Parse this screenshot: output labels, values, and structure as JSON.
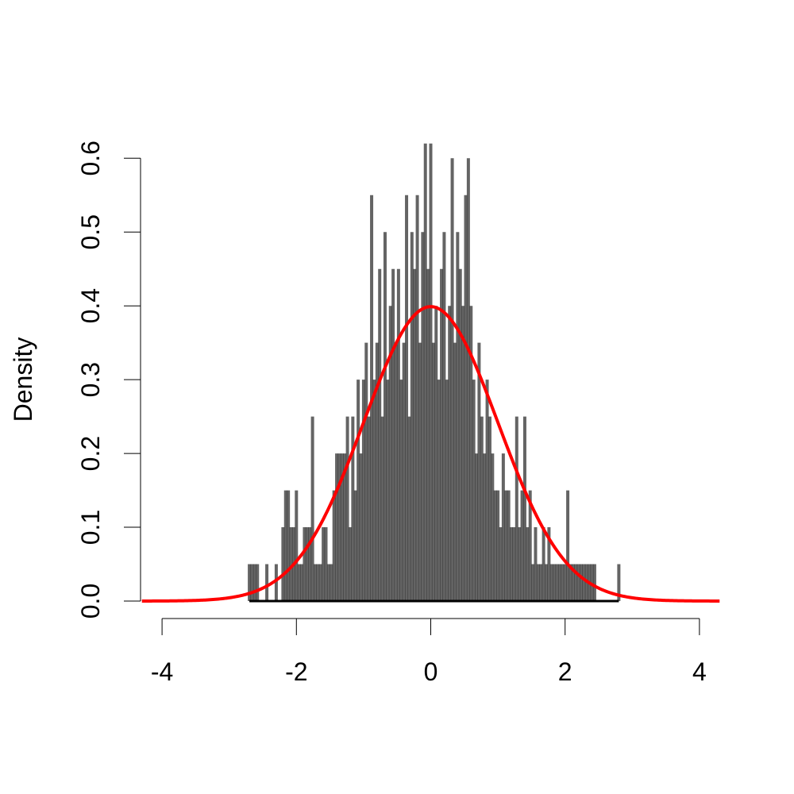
{
  "chart_data": {
    "type": "bar",
    "subtype": "histogram-with-density-curve",
    "title": "",
    "xlabel": "",
    "ylabel": "Density",
    "xlim": [
      -4.3,
      4.3
    ],
    "ylim": [
      0,
      0.62
    ],
    "x_ticks": [
      -4,
      -2,
      0,
      2,
      4
    ],
    "x_tick_labels": [
      "-4",
      "-2",
      "0",
      "2",
      "4"
    ],
    "y_ticks": [
      0.0,
      0.1,
      0.2,
      0.3,
      0.4,
      0.5,
      0.6
    ],
    "y_tick_labels": [
      "0.0",
      "0.1",
      "0.2",
      "0.3",
      "0.4",
      "0.5",
      "0.6"
    ],
    "grid": false,
    "legend": "none",
    "bin_width": 0.02,
    "histogram": {
      "color": "#303030",
      "x": [
        -2.7,
        -2.66,
        -2.62,
        -2.58,
        -2.44,
        -2.3,
        -2.2,
        -2.16,
        -2.12,
        -2.08,
        -2.04,
        -2.0,
        -1.96,
        -1.92,
        -1.88,
        -1.84,
        -1.8,
        -1.76,
        -1.72,
        -1.68,
        -1.64,
        -1.6,
        -1.56,
        -1.52,
        -1.48,
        -1.44,
        -1.4,
        -1.36,
        -1.32,
        -1.28,
        -1.24,
        -1.2,
        -1.16,
        -1.12,
        -1.08,
        -1.04,
        -1.0,
        -0.96,
        -0.92,
        -0.88,
        -0.84,
        -0.8,
        -0.76,
        -0.72,
        -0.68,
        -0.64,
        -0.6,
        -0.56,
        -0.52,
        -0.48,
        -0.44,
        -0.4,
        -0.36,
        -0.32,
        -0.28,
        -0.24,
        -0.2,
        -0.16,
        -0.12,
        -0.08,
        -0.04,
        0.0,
        0.04,
        0.08,
        0.12,
        0.16,
        0.2,
        0.24,
        0.28,
        0.32,
        0.36,
        0.4,
        0.44,
        0.48,
        0.52,
        0.56,
        0.6,
        0.64,
        0.68,
        0.72,
        0.76,
        0.8,
        0.84,
        0.88,
        0.92,
        0.96,
        1.0,
        1.04,
        1.08,
        1.12,
        1.16,
        1.2,
        1.24,
        1.28,
        1.32,
        1.36,
        1.4,
        1.44,
        1.48,
        1.52,
        1.56,
        1.6,
        1.64,
        1.68,
        1.72,
        1.76,
        1.8,
        1.84,
        1.88,
        1.92,
        1.96,
        2.0,
        2.04,
        2.08,
        2.12,
        2.16,
        2.2,
        2.24,
        2.28,
        2.32,
        2.36,
        2.4,
        2.44,
        2.8
      ],
      "density": [
        0.05,
        0.05,
        0.05,
        0.05,
        0.05,
        0.05,
        0.1,
        0.15,
        0.15,
        0.1,
        0.1,
        0.15,
        0.05,
        0.05,
        0.1,
        0.1,
        0.1,
        0.25,
        0.05,
        0.05,
        0.05,
        0.1,
        0.1,
        0.05,
        0.05,
        0.15,
        0.2,
        0.2,
        0.2,
        0.2,
        0.25,
        0.1,
        0.25,
        0.15,
        0.3,
        0.2,
        0.3,
        0.35,
        0.25,
        0.55,
        0.3,
        0.35,
        0.45,
        0.25,
        0.5,
        0.3,
        0.4,
        0.45,
        0.35,
        0.45,
        0.3,
        0.35,
        0.55,
        0.25,
        0.5,
        0.45,
        0.55,
        0.35,
        0.5,
        0.62,
        0.45,
        0.62,
        0.35,
        0.4,
        0.3,
        0.45,
        0.5,
        0.3,
        0.4,
        0.6,
        0.35,
        0.5,
        0.45,
        0.4,
        0.55,
        0.6,
        0.4,
        0.3,
        0.2,
        0.35,
        0.25,
        0.2,
        0.3,
        0.25,
        0.2,
        0.15,
        0.15,
        0.1,
        0.2,
        0.15,
        0.15,
        0.1,
        0.1,
        0.25,
        0.1,
        0.15,
        0.25,
        0.1,
        0.15,
        0.05,
        0.1,
        0.05,
        0.05,
        0.1,
        0.05,
        0.1,
        0.05,
        0.05,
        0.05,
        0.05,
        0.05,
        0.05,
        0.15,
        0.05,
        0.05,
        0.05,
        0.05,
        0.05,
        0.05,
        0.05,
        0.05,
        0.05,
        0.05,
        0.05,
        0.05,
        0.05
      ]
    },
    "density_curve": {
      "name": "",
      "color": "#ff0000",
      "mean": 0,
      "sd": 1,
      "x_range": [
        -4.3,
        4.3
      ]
    }
  }
}
